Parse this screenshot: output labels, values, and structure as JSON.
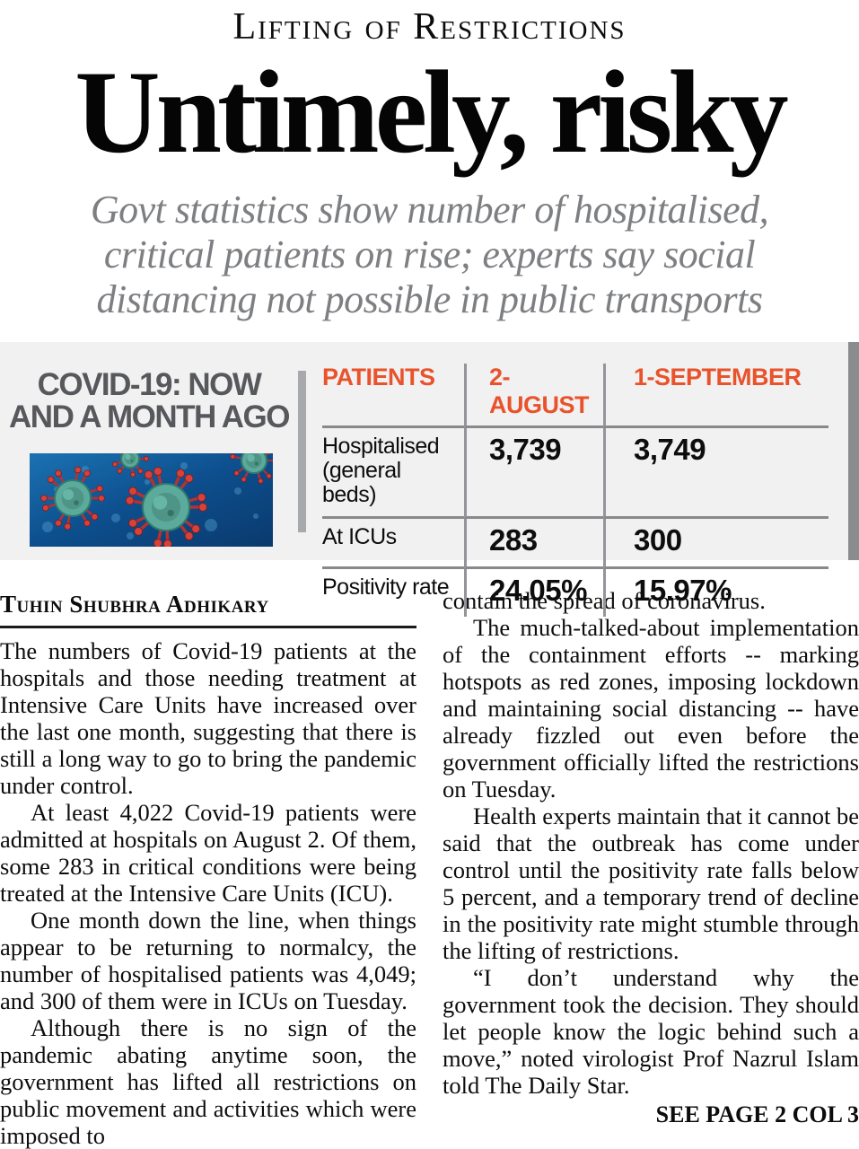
{
  "page": {
    "kicker": "Lifting of Restrictions",
    "headline": "Untimely, risky",
    "subheadline": {
      "lines": [
        "Govt statistics show number of hospitalised,",
        "critical patients on rise; experts say social",
        "distancing not possible in public transports"
      ]
    }
  },
  "infobox": {
    "title_lines": [
      "COVID-19: NOW",
      "AND A MONTH AGO"
    ],
    "image": "coronavirus-illustration",
    "table": {
      "columns": [
        "PATIENTS",
        "2-AUGUST",
        "1-SEPTEMBER"
      ],
      "rows": [
        {
          "label": "Hospitalised (general beds)",
          "values": [
            "3,739",
            "3,749"
          ]
        },
        {
          "label": "At ICUs",
          "values": [
            "283",
            "300"
          ]
        },
        {
          "label": "Positivity rate",
          "values": [
            "24.05%",
            "15.97%"
          ]
        }
      ]
    }
  },
  "article": {
    "byline": "Tuhin Shubhra Adhikary",
    "left_paragraphs": [
      "The numbers of Covid-19 patients at the hospitals and those needing treatment at Intensive Care Units have increased over the last one month, suggesting that there is still a long way to go to bring the pandemic under control.",
      "At least 4,022 Covid-19 patients were admitted at hospitals on August 2. Of them, some 283 in critical conditions were being treated at the Intensive Care Units (ICU).",
      "One month down the line, when things appear to be returning to normalcy, the number of hospitalised patients was 4,049; and 300 of them were in ICUs on Tuesday.",
      "Although there is no sign of the pandemic abating anytime soon, the government has lifted all restrictions on public movement and activities which were imposed to"
    ],
    "right_paragraphs": [
      "contain the spread of coronavirus.",
      "The much-talked-about implementation of the containment efforts -- marking hotspots as red zones, imposing lockdown and maintaining social distancing -- have already fizzled out even before the government officially lifted the restrictions on Tuesday.",
      "Health experts maintain that it cannot be said that the outbreak has come under control until the positivity rate falls below 5 percent, and a temporary trend of decline in the positivity rate might stumble through the lifting of restrictions.",
      "“I don’t understand why the government took the decision. They should let people know the logic behind such a move,” noted virologist Prof Nazrul Islam told The Daily Star."
    ],
    "jumpline": "SEE PAGE 2 COL 3"
  },
  "colors": {
    "accent_orange": "#E9532B",
    "infobox_bg": "#F1F1F2",
    "side_bar_gray": "#8A8C8E",
    "divider_gray": "#A7A9AC",
    "title_gray": "#57585B",
    "subhead_gray": "#7D7F82",
    "text_black": "#0D0D0D"
  }
}
